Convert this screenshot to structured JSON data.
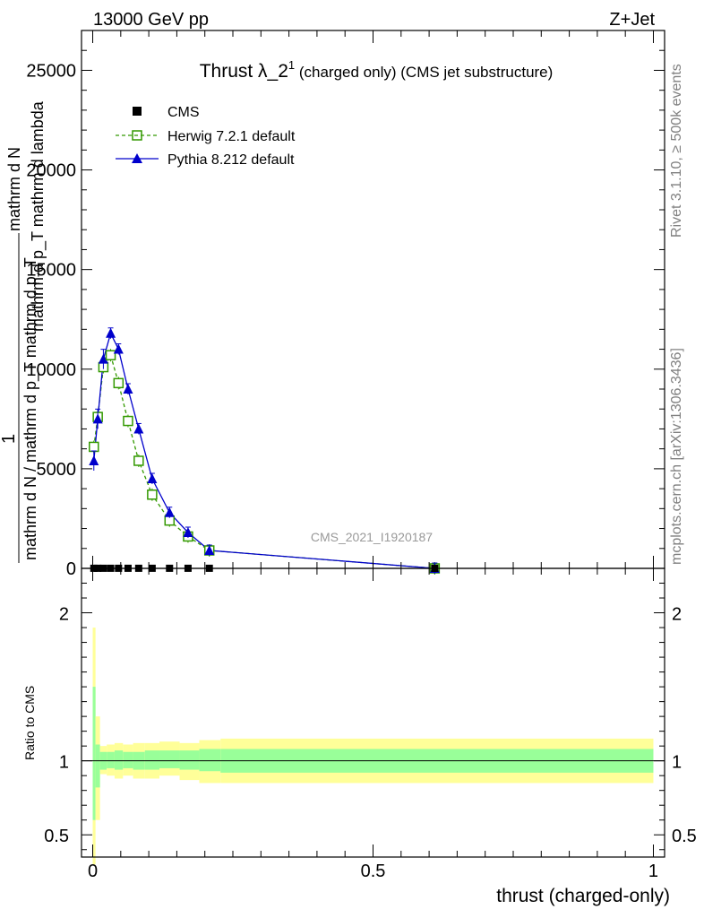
{
  "header": {
    "left": "13000 GeV pp",
    "right": "Z+Jet"
  },
  "title": {
    "main": "Thrust λ_2",
    "superscript": "1",
    "suffix": " (charged only) (CMS jet substructure)"
  },
  "side_labels": {
    "rivet": "Rivet 3.1.10, ≥ 500k events",
    "mcplots": "mcplots.cern.ch [arXiv:1306.3436]"
  },
  "watermark": "CMS_2021_I1920187",
  "main_ylabel": {
    "numerator_lines": [
      "mathrm d N",
      "mathrm d p_T mathrm d lambda"
    ],
    "numerator": "mathrm d^{2}N",
    "one": "1",
    "denominator": "mathrm d N / mathrm d p_T mathrm d p_T"
  },
  "ratio_ylabel": "Ratio to CMS",
  "xlabel": "thrust (charged-only)",
  "legend": {
    "cms": "CMS",
    "herwig": "Herwig 7.2.1 default",
    "pythia": "Pythia 8.212 default"
  },
  "colors": {
    "herwig": "#339900",
    "pythia": "#0000cc",
    "band_inner": "#99ff99",
    "band_outer": "#ffff99"
  },
  "chart_data": {
    "type": "line",
    "main_panel": {
      "ylim": [
        0,
        27000
      ],
      "y_ticks": [
        0,
        5000,
        10000,
        15000,
        20000,
        25000
      ],
      "y_tick_labels": [
        "0",
        "5000",
        "10000",
        "15000",
        "20000",
        "25000"
      ],
      "x": [
        0.002,
        0.009,
        0.019,
        0.032,
        0.046,
        0.063,
        0.082,
        0.106,
        0.137,
        0.17,
        0.208,
        0.61
      ],
      "series": [
        {
          "name": "CMS",
          "values": [
            5,
            5,
            5,
            5,
            5,
            5,
            5,
            5,
            5,
            5,
            5,
            0
          ]
        },
        {
          "name": "Herwig 7.2.1 default",
          "values": [
            6100,
            7600,
            10100,
            10700,
            9300,
            7400,
            5400,
            3700,
            2400,
            1600,
            900,
            0
          ]
        },
        {
          "name": "Pythia 8.212 default",
          "values": [
            5400,
            7500,
            10500,
            11800,
            11000,
            9000,
            7000,
            4500,
            2800,
            1800,
            900,
            0
          ]
        }
      ]
    },
    "ratio_panel": {
      "ylim": [
        0.35,
        2.3
      ],
      "y_ticks": [
        0.5,
        1,
        2
      ],
      "y_tick_labels": [
        "0.5",
        "1",
        "2"
      ],
      "bin_edges": [
        0,
        0.005,
        0.013,
        0.025,
        0.039,
        0.054,
        0.072,
        0.093,
        0.119,
        0.155,
        0.19,
        0.228,
        1.0
      ],
      "inner_band_low": [
        0.6,
        0.82,
        0.94,
        0.95,
        0.94,
        0.95,
        0.94,
        0.94,
        0.95,
        0.94,
        0.93,
        0.92
      ],
      "inner_band_high": [
        1.5,
        1.11,
        1.06,
        1.06,
        1.07,
        1.06,
        1.06,
        1.07,
        1.07,
        1.07,
        1.08,
        1.08
      ],
      "outer_band_low": [
        0.3,
        0.6,
        0.91,
        0.9,
        0.88,
        0.9,
        0.88,
        0.88,
        0.9,
        0.87,
        0.85,
        0.85
      ],
      "outer_band_high": [
        1.9,
        1.3,
        1.1,
        1.11,
        1.12,
        1.11,
        1.12,
        1.12,
        1.13,
        1.12,
        1.14,
        1.15
      ]
    },
    "xlim": [
      -0.02,
      1.02
    ],
    "x_ticks": [
      0,
      0.5,
      1
    ],
    "x_tick_labels": [
      "0",
      "0.5",
      "1"
    ]
  }
}
